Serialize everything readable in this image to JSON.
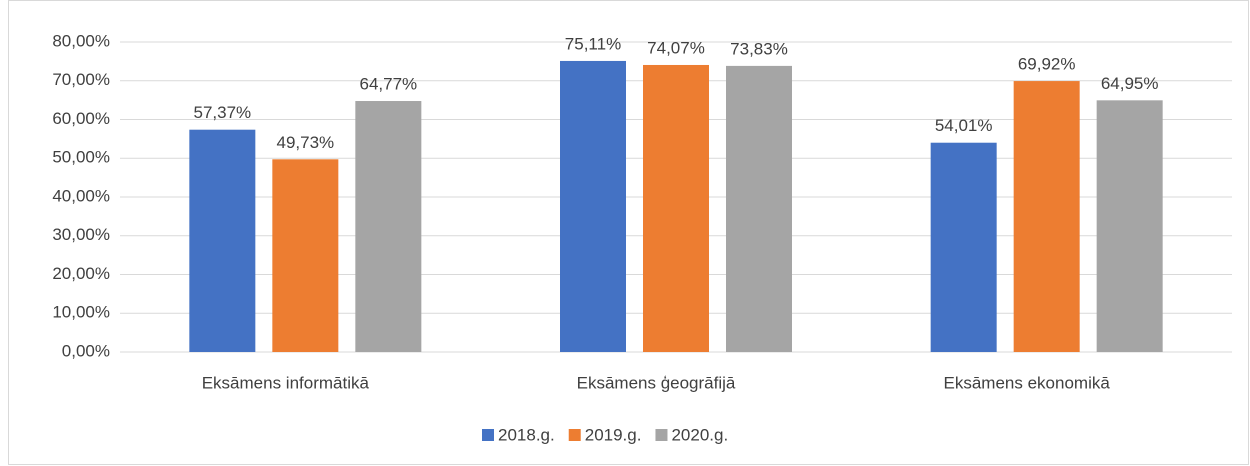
{
  "chart_data": {
    "type": "bar",
    "categories": [
      "Eksāmens informātikā",
      "Eksāmens ģeogrāfijā",
      "Eksāmens ekonomikā"
    ],
    "series": [
      {
        "name": "2018.g.",
        "color": "#4472c4",
        "values": [
          57.37,
          75.11,
          54.01
        ],
        "value_labels": [
          "57,37%",
          "75,11%",
          "54,01%"
        ]
      },
      {
        "name": "2019.g.",
        "color": "#ed7d31",
        "values": [
          49.73,
          74.07,
          69.92
        ],
        "value_labels": [
          "49,73%",
          "74,07%",
          "69,92%"
        ]
      },
      {
        "name": "2020.g.",
        "color": "#a5a5a5",
        "values": [
          64.77,
          73.83,
          64.95
        ],
        "value_labels": [
          "64,77%",
          "73,83%",
          "64,95%"
        ]
      }
    ],
    "ylim": [
      0,
      80
    ],
    "yticks": [
      {
        "value": 0,
        "label": "0,00%"
      },
      {
        "value": 10,
        "label": "10,00%"
      },
      {
        "value": 20,
        "label": "20,00%"
      },
      {
        "value": 30,
        "label": "30,00%"
      },
      {
        "value": 40,
        "label": "40,00%"
      },
      {
        "value": 50,
        "label": "50,00%"
      },
      {
        "value": 60,
        "label": "60,00%"
      },
      {
        "value": 70,
        "label": "70,00%"
      },
      {
        "value": 80,
        "label": "80,00%"
      }
    ],
    "grid": true,
    "legend": "bottom"
  }
}
